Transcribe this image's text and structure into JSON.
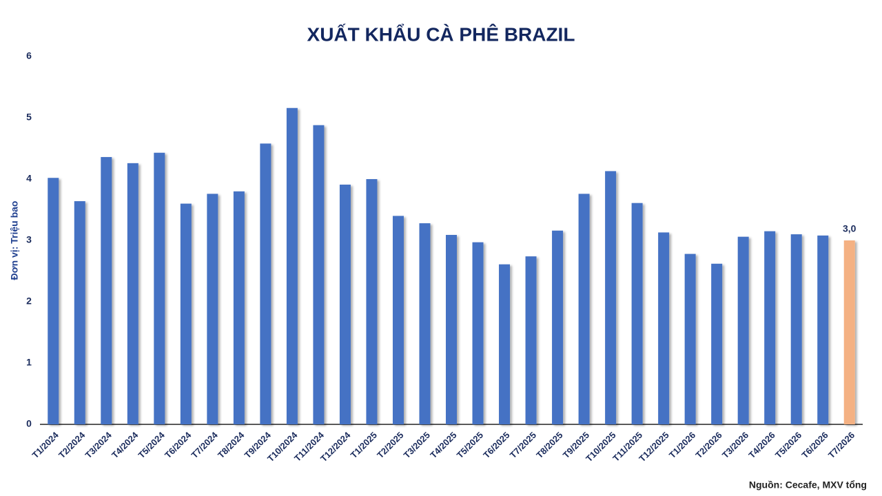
{
  "chart_data": {
    "type": "bar",
    "title": "XUẤT KHẨU CÀ PHÊ BRAZIL",
    "y_label": "Đơn vị:  Triệu bao",
    "source": "Nguồn: Cecafe, MXV tổng",
    "categories": [
      "T1/2024",
      "T2/2024",
      "T3/2024",
      "T4/2024",
      "T5/2024",
      "T6/2024",
      "T7/2024",
      "T8/2024",
      "T9/2024",
      "T10/2024",
      "T11/2024",
      "T12/2024",
      "T1/2025",
      "T2/2025",
      "T3/2025",
      "T4/2025",
      "T5/2025",
      "T6/2025",
      "T7/2025",
      "T8/2025",
      "T9/2025",
      "T10/2025",
      "T11/2025",
      "T12/2025",
      "T1/2026",
      "T2/2026",
      "T3/2026",
      "T4/2026",
      "T5/2026",
      "T6/2026",
      "T7/2026"
    ],
    "values": [
      4.02,
      3.64,
      4.36,
      4.26,
      4.43,
      3.6,
      3.76,
      3.8,
      4.58,
      5.16,
      4.88,
      3.91,
      4.0,
      3.4,
      3.28,
      3.09,
      2.97,
      2.61,
      2.74,
      3.16,
      3.76,
      4.13,
      3.61,
      3.13,
      2.78,
      2.62,
      3.06,
      3.15,
      3.1,
      3.08,
      3.0
    ],
    "value_labels": [
      null,
      null,
      null,
      null,
      null,
      null,
      null,
      null,
      null,
      null,
      null,
      null,
      null,
      null,
      null,
      null,
      null,
      null,
      null,
      null,
      null,
      null,
      null,
      null,
      null,
      null,
      null,
      null,
      null,
      null,
      "3,0"
    ],
    "colors": [
      "#4472c4",
      "#4472c4",
      "#4472c4",
      "#4472c4",
      "#4472c4",
      "#4472c4",
      "#4472c4",
      "#4472c4",
      "#4472c4",
      "#4472c4",
      "#4472c4",
      "#4472c4",
      "#4472c4",
      "#4472c4",
      "#4472c4",
      "#4472c4",
      "#4472c4",
      "#4472c4",
      "#4472c4",
      "#4472c4",
      "#4472c4",
      "#4472c4",
      "#4472c4",
      "#4472c4",
      "#4472c4",
      "#4472c4",
      "#4472c4",
      "#4472c4",
      "#4472c4",
      "#4472c4",
      "#f4b183"
    ],
    "ylim": [
      0,
      6
    ],
    "yticks": [
      0,
      1,
      2,
      3,
      4,
      5,
      6
    ],
    "grid": false
  }
}
